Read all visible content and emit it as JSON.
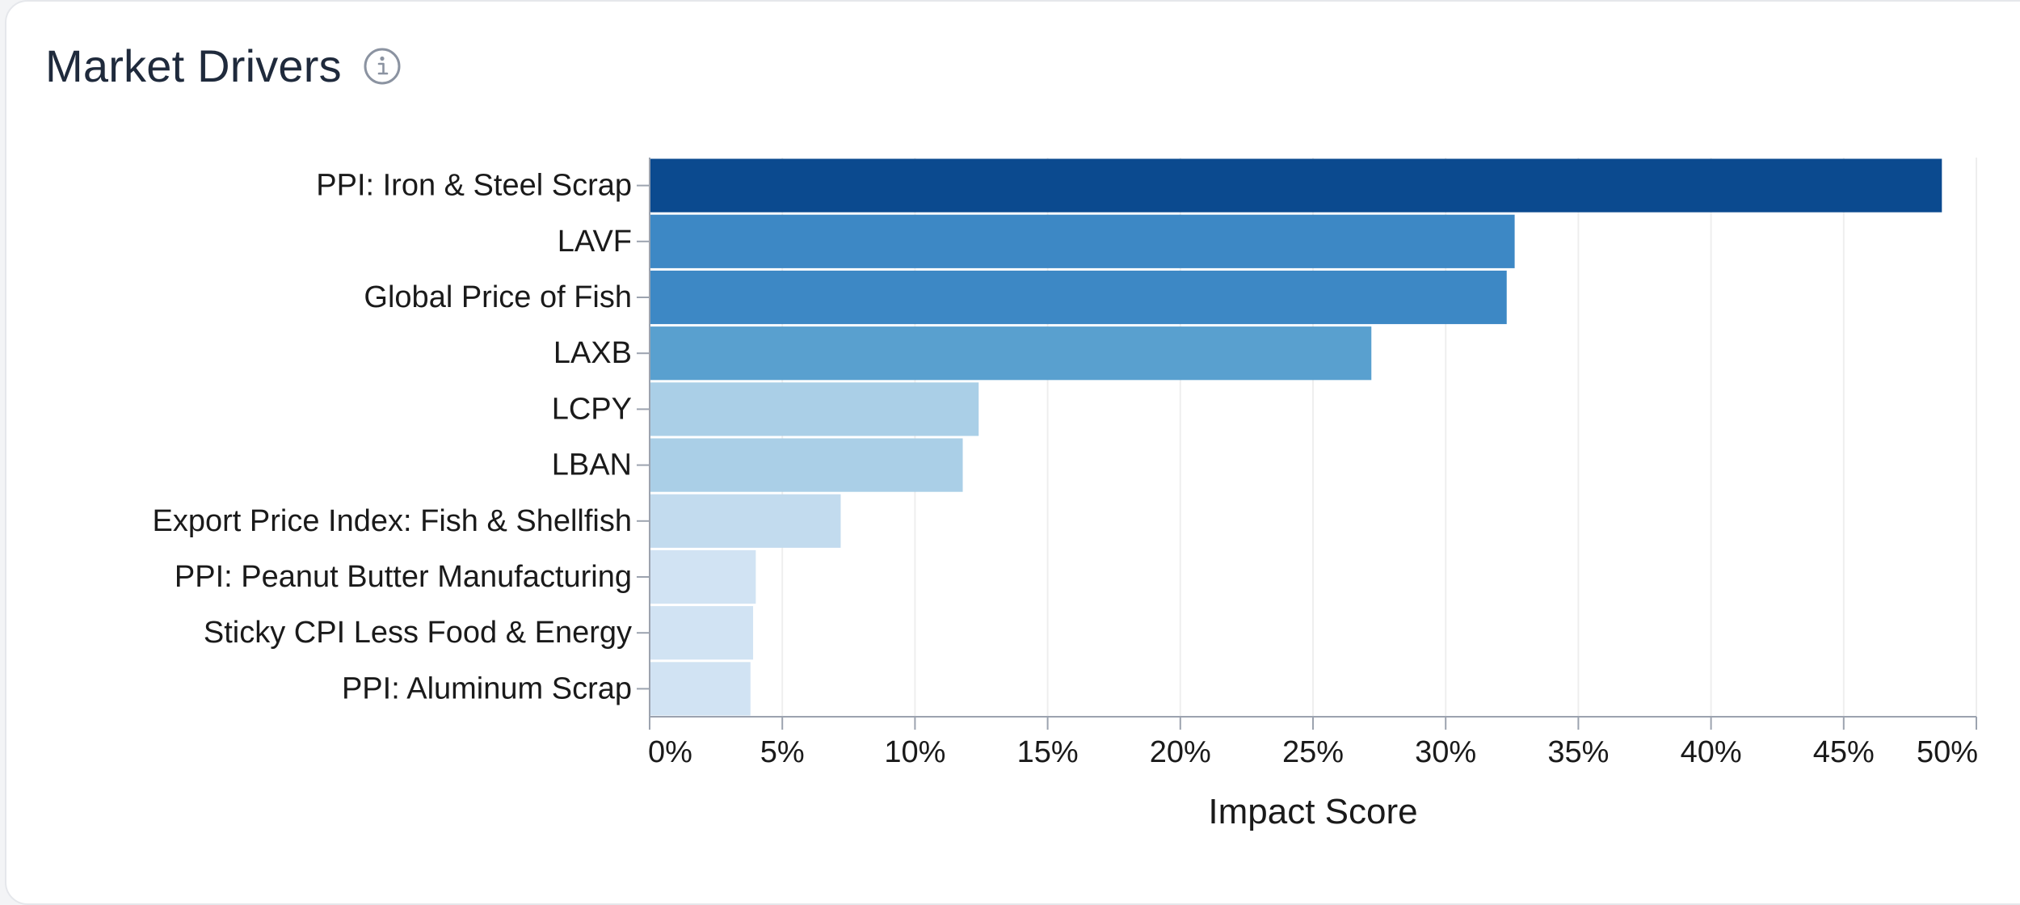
{
  "card": {
    "title": "Market Drivers",
    "info_icon": "info-icon"
  },
  "colors": {
    "title": "#1f2a3c",
    "axis": "#9ca3af",
    "grid": "#eeeeee",
    "label": "#1a1a1a"
  },
  "chart_data": {
    "type": "bar",
    "orientation": "horizontal",
    "title": "",
    "xlabel": "Impact Score",
    "ylabel": "",
    "xlim": [
      0,
      50
    ],
    "x_tick_labels": [
      "0%",
      "5%",
      "10%",
      "15%",
      "20%",
      "25%",
      "30%",
      "35%",
      "40%",
      "45%",
      "50%"
    ],
    "x_ticks": [
      0,
      5,
      10,
      15,
      20,
      25,
      30,
      35,
      40,
      45,
      50
    ],
    "grid": true,
    "categories": [
      "PPI: Iron & Steel Scrap",
      "LAVF",
      "Global Price of Fish",
      "LAXB",
      "LCPY",
      "LBAN",
      "Export Price Index: Fish & Shellfish",
      "PPI: Peanut Butter Manufacturing",
      "Sticky CPI Less Food & Energy",
      "PPI: Aluminum Scrap"
    ],
    "values": [
      48.7,
      32.6,
      32.3,
      27.2,
      12.4,
      11.8,
      7.2,
      4.0,
      3.9,
      3.8
    ],
    "bar_colors": [
      "#0b4a8f",
      "#3d88c5",
      "#3d88c5",
      "#59a0cf",
      "#aacfe7",
      "#aacfe7",
      "#c2dbee",
      "#d1e3f3",
      "#d1e3f3",
      "#d1e3f3"
    ]
  }
}
